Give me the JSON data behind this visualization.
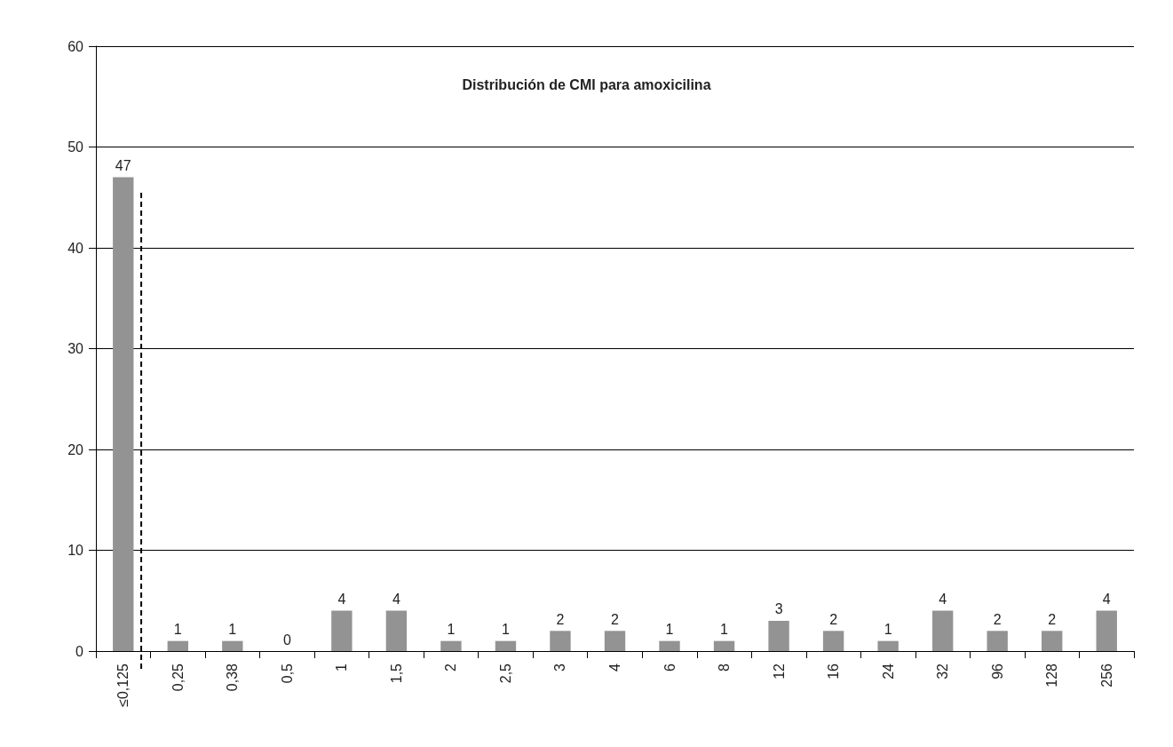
{
  "chart_data": {
    "type": "bar",
    "title": "Distribución de CMI para amoxicilina",
    "categories": [
      "≤0,125",
      "0,25",
      "0,38",
      "0,5",
      "1",
      "1,5",
      "2",
      "2,5",
      "3",
      "4",
      "6",
      "8",
      "12",
      "16",
      "24",
      "32",
      "96",
      "128",
      "256"
    ],
    "values": [
      47,
      1,
      1,
      0,
      4,
      4,
      1,
      1,
      2,
      2,
      1,
      1,
      3,
      2,
      1,
      4,
      2,
      2,
      4
    ],
    "color": "#939393",
    "data_labels": true,
    "ylim": [
      0,
      60
    ],
    "yticks": [
      0,
      10,
      20,
      30,
      40,
      50,
      60
    ],
    "grid": "y",
    "ref_lines": [
      {
        "axis": "x",
        "value": "≤0,125",
        "line_style": "dashed",
        "color": "#000000"
      }
    ]
  }
}
